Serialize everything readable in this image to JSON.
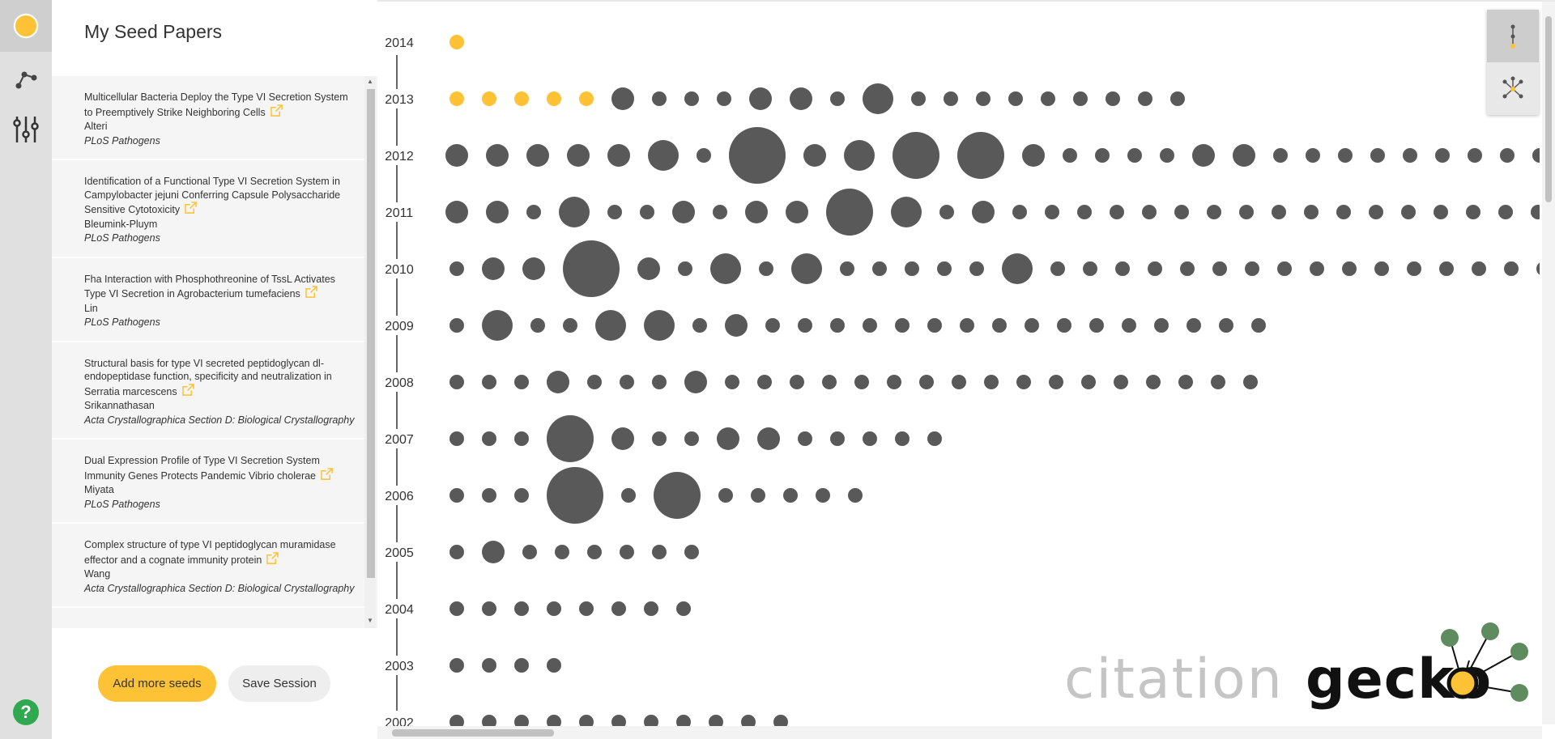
{
  "colors": {
    "seed": "#fdc235",
    "paper": "#595959",
    "accent_green": "#5e8c5e",
    "help_green": "#2fa84f"
  },
  "rail": {
    "items": [
      {
        "name": "seed-papers",
        "icon": "seed-dot-icon",
        "active": true
      },
      {
        "name": "network-view",
        "icon": "network-icon",
        "active": false
      },
      {
        "name": "filters",
        "icon": "sliders-icon",
        "active": false
      }
    ],
    "help_label": "?"
  },
  "panel": {
    "title": "My Seed Papers",
    "seeds": [
      {
        "title": "Multicellular Bacteria Deploy the Type VI Secretion System to Preemptively Strike Neighboring Cells",
        "author": "Alteri",
        "journal": "PLoS Pathogens"
      },
      {
        "title": "Identification of a Functional Type VI Secretion System in Campylobacter jejuni Conferring Capsule Polysaccharide Sensitive Cytotoxicity",
        "author": "Bleumink-Pluym",
        "journal": "PLoS Pathogens"
      },
      {
        "title": "Fha Interaction with Phosphothreonine of TssL Activates Type VI Secretion in Agrobacterium tumefaciens",
        "author": "Lin",
        "journal": "PLoS Pathogens"
      },
      {
        "title": "Structural basis for type VI secreted peptidoglycan dl-endopeptidase function, specificity and neutralization in Serratia marcescens",
        "author": "Srikannathasan",
        "journal": "Acta Crystallographica Section D: Biological Crystallography"
      },
      {
        "title": "Dual Expression Profile of Type VI Secretion System Immunity Genes Protects Pandemic Vibrio cholerae",
        "author": "Miyata",
        "journal": "PLoS Pathogens"
      },
      {
        "title": "Complex structure of type VI peptidoglycan muramidase effector and a cognate immunity protein",
        "author": "Wang",
        "journal": "Acta Crystallographica Section D: Biological Crystallography"
      }
    ],
    "add_seeds_label": "Add more seeds",
    "save_session_label": "Save Session"
  },
  "timeline": {
    "rows": [
      {
        "year": "2014",
        "papers": [
          {
            "r": 1,
            "seed": true
          }
        ]
      },
      {
        "year": "2013",
        "papers": [
          {
            "r": 1,
            "seed": true
          },
          {
            "r": 1,
            "seed": true
          },
          {
            "r": 1,
            "seed": true
          },
          {
            "r": 1,
            "seed": true
          },
          {
            "r": 1,
            "seed": true
          },
          {
            "r": 2
          },
          {
            "r": 1
          },
          {
            "r": 1
          },
          {
            "r": 1
          },
          {
            "r": 2
          },
          {
            "r": 2
          },
          {
            "r": 1
          },
          {
            "r": 3
          },
          {
            "r": 1
          },
          {
            "r": 1
          },
          {
            "r": 1
          },
          {
            "r": 1
          },
          {
            "r": 1
          },
          {
            "r": 1
          },
          {
            "r": 1
          },
          {
            "r": 1
          },
          {
            "r": 1
          }
        ]
      },
      {
        "year": "2012",
        "papers": [
          {
            "r": 2
          },
          {
            "r": 2
          },
          {
            "r": 2
          },
          {
            "r": 2
          },
          {
            "r": 2
          },
          {
            "r": 3
          },
          {
            "r": 1
          },
          {
            "r": 5
          },
          {
            "r": 2
          },
          {
            "r": 3
          },
          {
            "r": 4
          },
          {
            "r": 4
          },
          {
            "r": 2
          },
          {
            "r": 1
          },
          {
            "r": 1
          },
          {
            "r": 1
          },
          {
            "r": 1
          },
          {
            "r": 2
          },
          {
            "r": 2
          },
          {
            "r": 1
          },
          {
            "r": 1
          },
          {
            "r": 1
          },
          {
            "r": 1
          },
          {
            "r": 1
          },
          {
            "r": 1
          },
          {
            "r": 1
          },
          {
            "r": 1
          },
          {
            "r": 1
          },
          {
            "r": 1
          }
        ]
      },
      {
        "year": "2011",
        "papers": [
          {
            "r": 2
          },
          {
            "r": 2
          },
          {
            "r": 1
          },
          {
            "r": 3
          },
          {
            "r": 1
          },
          {
            "r": 1
          },
          {
            "r": 2
          },
          {
            "r": 1
          },
          {
            "r": 2
          },
          {
            "r": 2
          },
          {
            "r": 4
          },
          {
            "r": 3
          },
          {
            "r": 1
          },
          {
            "r": 2
          },
          {
            "r": 1
          },
          {
            "r": 1
          },
          {
            "r": 1
          },
          {
            "r": 1
          },
          {
            "r": 1
          },
          {
            "r": 1
          },
          {
            "r": 1
          },
          {
            "r": 1
          },
          {
            "r": 1
          },
          {
            "r": 1
          },
          {
            "r": 1
          },
          {
            "r": 1
          },
          {
            "r": 1
          },
          {
            "r": 1
          },
          {
            "r": 1
          },
          {
            "r": 1
          },
          {
            "r": 1
          }
        ]
      },
      {
        "year": "2010",
        "papers": [
          {
            "r": 1
          },
          {
            "r": 2
          },
          {
            "r": 2
          },
          {
            "r": 5
          },
          {
            "r": 2
          },
          {
            "r": 1
          },
          {
            "r": 3
          },
          {
            "r": 1
          },
          {
            "r": 3
          },
          {
            "r": 1
          },
          {
            "r": 1
          },
          {
            "r": 1
          },
          {
            "r": 1
          },
          {
            "r": 1
          },
          {
            "r": 3
          },
          {
            "r": 1
          },
          {
            "r": 1
          },
          {
            "r": 1
          },
          {
            "r": 1
          },
          {
            "r": 1
          },
          {
            "r": 1
          },
          {
            "r": 1
          },
          {
            "r": 1
          },
          {
            "r": 1
          },
          {
            "r": 1
          },
          {
            "r": 1
          },
          {
            "r": 1
          },
          {
            "r": 1
          },
          {
            "r": 1
          },
          {
            "r": 1
          },
          {
            "r": 1
          },
          {
            "r": 1
          },
          {
            "r": 1
          }
        ]
      },
      {
        "year": "2009",
        "papers": [
          {
            "r": 1
          },
          {
            "r": 3
          },
          {
            "r": 1
          },
          {
            "r": 1
          },
          {
            "r": 3
          },
          {
            "r": 3
          },
          {
            "r": 1
          },
          {
            "r": 2
          },
          {
            "r": 1
          },
          {
            "r": 1
          },
          {
            "r": 1
          },
          {
            "r": 1
          },
          {
            "r": 1
          },
          {
            "r": 1
          },
          {
            "r": 1
          },
          {
            "r": 1
          },
          {
            "r": 1
          },
          {
            "r": 1
          },
          {
            "r": 1
          },
          {
            "r": 1
          },
          {
            "r": 1
          },
          {
            "r": 1
          },
          {
            "r": 1
          },
          {
            "r": 1
          }
        ]
      },
      {
        "year": "2008",
        "papers": [
          {
            "r": 1
          },
          {
            "r": 1
          },
          {
            "r": 1
          },
          {
            "r": 2
          },
          {
            "r": 1
          },
          {
            "r": 1
          },
          {
            "r": 1
          },
          {
            "r": 2
          },
          {
            "r": 1
          },
          {
            "r": 1
          },
          {
            "r": 1
          },
          {
            "r": 1
          },
          {
            "r": 1
          },
          {
            "r": 1
          },
          {
            "r": 1
          },
          {
            "r": 1
          },
          {
            "r": 1
          },
          {
            "r": 1
          },
          {
            "r": 1
          },
          {
            "r": 1
          },
          {
            "r": 1
          },
          {
            "r": 1
          },
          {
            "r": 1
          },
          {
            "r": 1
          },
          {
            "r": 1
          }
        ]
      },
      {
        "year": "2007",
        "papers": [
          {
            "r": 1
          },
          {
            "r": 1
          },
          {
            "r": 1
          },
          {
            "r": 4
          },
          {
            "r": 2
          },
          {
            "r": 1
          },
          {
            "r": 1
          },
          {
            "r": 2
          },
          {
            "r": 2
          },
          {
            "r": 1
          },
          {
            "r": 1
          },
          {
            "r": 1
          },
          {
            "r": 1
          },
          {
            "r": 1
          }
        ]
      },
      {
        "year": "2006",
        "papers": [
          {
            "r": 1
          },
          {
            "r": 1
          },
          {
            "r": 1
          },
          {
            "r": 5
          },
          {
            "r": 1
          },
          {
            "r": 4
          },
          {
            "r": 1
          },
          {
            "r": 1
          },
          {
            "r": 1
          },
          {
            "r": 1
          },
          {
            "r": 1
          }
        ]
      },
      {
        "year": "2005",
        "papers": [
          {
            "r": 1
          },
          {
            "r": 2
          },
          {
            "r": 1
          },
          {
            "r": 1
          },
          {
            "r": 1
          },
          {
            "r": 1
          },
          {
            "r": 1
          },
          {
            "r": 1
          }
        ]
      },
      {
        "year": "2004",
        "papers": [
          {
            "r": 1
          },
          {
            "r": 1
          },
          {
            "r": 1
          },
          {
            "r": 1
          },
          {
            "r": 1
          },
          {
            "r": 1
          },
          {
            "r": 1
          },
          {
            "r": 1
          }
        ]
      },
      {
        "year": "2003",
        "papers": [
          {
            "r": 1
          },
          {
            "r": 1
          },
          {
            "r": 1
          },
          {
            "r": 1
          }
        ]
      },
      {
        "year": "2002",
        "papers": [
          {
            "r": 1
          },
          {
            "r": 1
          },
          {
            "r": 1
          },
          {
            "r": 1
          },
          {
            "r": 1
          },
          {
            "r": 1
          },
          {
            "r": 1
          },
          {
            "r": 1
          },
          {
            "r": 1
          },
          {
            "r": 1
          },
          {
            "r": 1
          }
        ]
      }
    ]
  },
  "view_toggle": [
    {
      "name": "timeline-view",
      "icon": "timeline-icon",
      "active": true
    },
    {
      "name": "network-view",
      "icon": "network-icon",
      "active": false
    }
  ],
  "logo": {
    "light": "citation",
    "dark": "gecko"
  }
}
